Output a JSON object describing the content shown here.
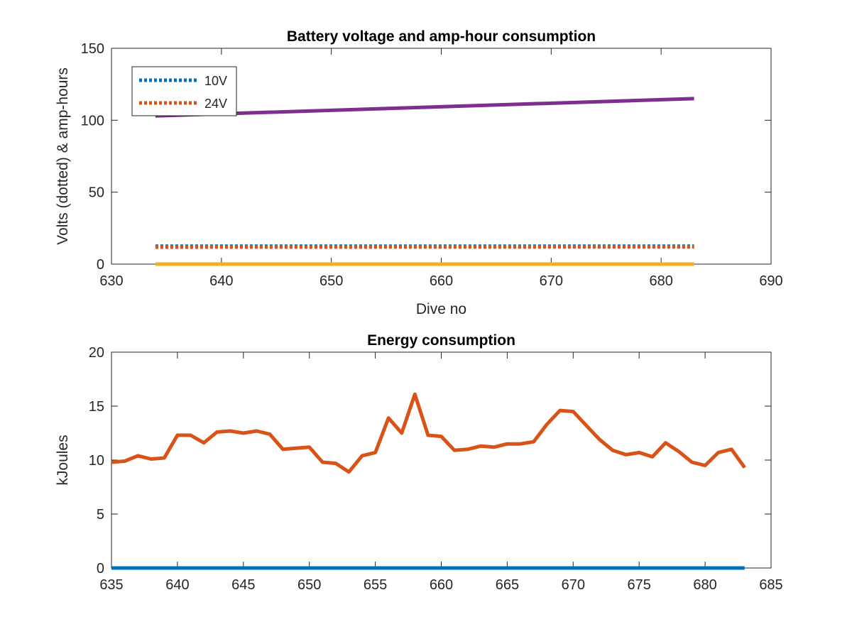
{
  "chart_data": [
    {
      "type": "line",
      "title": "Battery voltage and amp-hour consumption",
      "xlabel": "Dive no",
      "ylabel": "Volts (dotted) & amp-hours",
      "xlim": [
        630,
        690
      ],
      "ylim": [
        0,
        150
      ],
      "xticks": [
        630,
        640,
        650,
        660,
        670,
        680,
        690
      ],
      "yticks": [
        0,
        50,
        100,
        150
      ],
      "grid": false,
      "legend_position": "top-left",
      "series": [
        {
          "name": "10V",
          "style": "dotted",
          "color": "#0072BD",
          "x": [
            634,
            683
          ],
          "y": [
            12.5,
            12.5
          ]
        },
        {
          "name": "24V",
          "style": "dotted",
          "color": "#D95319",
          "x": [
            634,
            683
          ],
          "y": [
            11.8,
            12.0
          ]
        },
        {
          "style": "solid",
          "color": "#EDB120",
          "x": [
            634,
            683
          ],
          "y": [
            0,
            0
          ]
        },
        {
          "style": "solid",
          "color": "#7E2F8E",
          "x": [
            634,
            683
          ],
          "y": [
            103,
            115
          ]
        }
      ]
    },
    {
      "type": "line",
      "title": "Energy consumption",
      "xlabel": "",
      "ylabel": "kJoules",
      "xlim": [
        635,
        685
      ],
      "ylim": [
        0,
        20
      ],
      "xticks": [
        635,
        640,
        645,
        650,
        655,
        660,
        665,
        670,
        675,
        680,
        685
      ],
      "yticks": [
        0,
        5,
        10,
        15,
        20
      ],
      "grid": false,
      "series": [
        {
          "style": "solid",
          "color": "#0072BD",
          "x": [
            635,
            683
          ],
          "y": [
            0,
            0
          ]
        },
        {
          "style": "solid",
          "color": "#D95319",
          "x": [
            635,
            636,
            637,
            638,
            639,
            640,
            641,
            642,
            643,
            644,
            645,
            646,
            647,
            648,
            649,
            650,
            651,
            652,
            653,
            654,
            655,
            656,
            657,
            658,
            659,
            660,
            661,
            662,
            663,
            664,
            665,
            666,
            667,
            668,
            669,
            670,
            671,
            672,
            673,
            674,
            675,
            676,
            677,
            678,
            679,
            680,
            681,
            682,
            683
          ],
          "y": [
            9.8,
            9.9,
            10.4,
            10.1,
            10.2,
            12.3,
            12.3,
            11.6,
            12.6,
            12.7,
            12.5,
            12.7,
            12.4,
            11.0,
            11.1,
            11.2,
            9.8,
            9.7,
            8.9,
            10.4,
            10.7,
            13.9,
            12.5,
            16.1,
            12.3,
            12.2,
            10.9,
            11.0,
            11.3,
            11.2,
            11.5,
            11.5,
            11.7,
            13.3,
            14.6,
            14.5,
            13.2,
            11.9,
            10.9,
            10.5,
            10.7,
            10.3,
            11.6,
            10.8,
            9.8,
            9.5,
            10.7,
            11.0,
            9.3
          ]
        }
      ]
    }
  ]
}
